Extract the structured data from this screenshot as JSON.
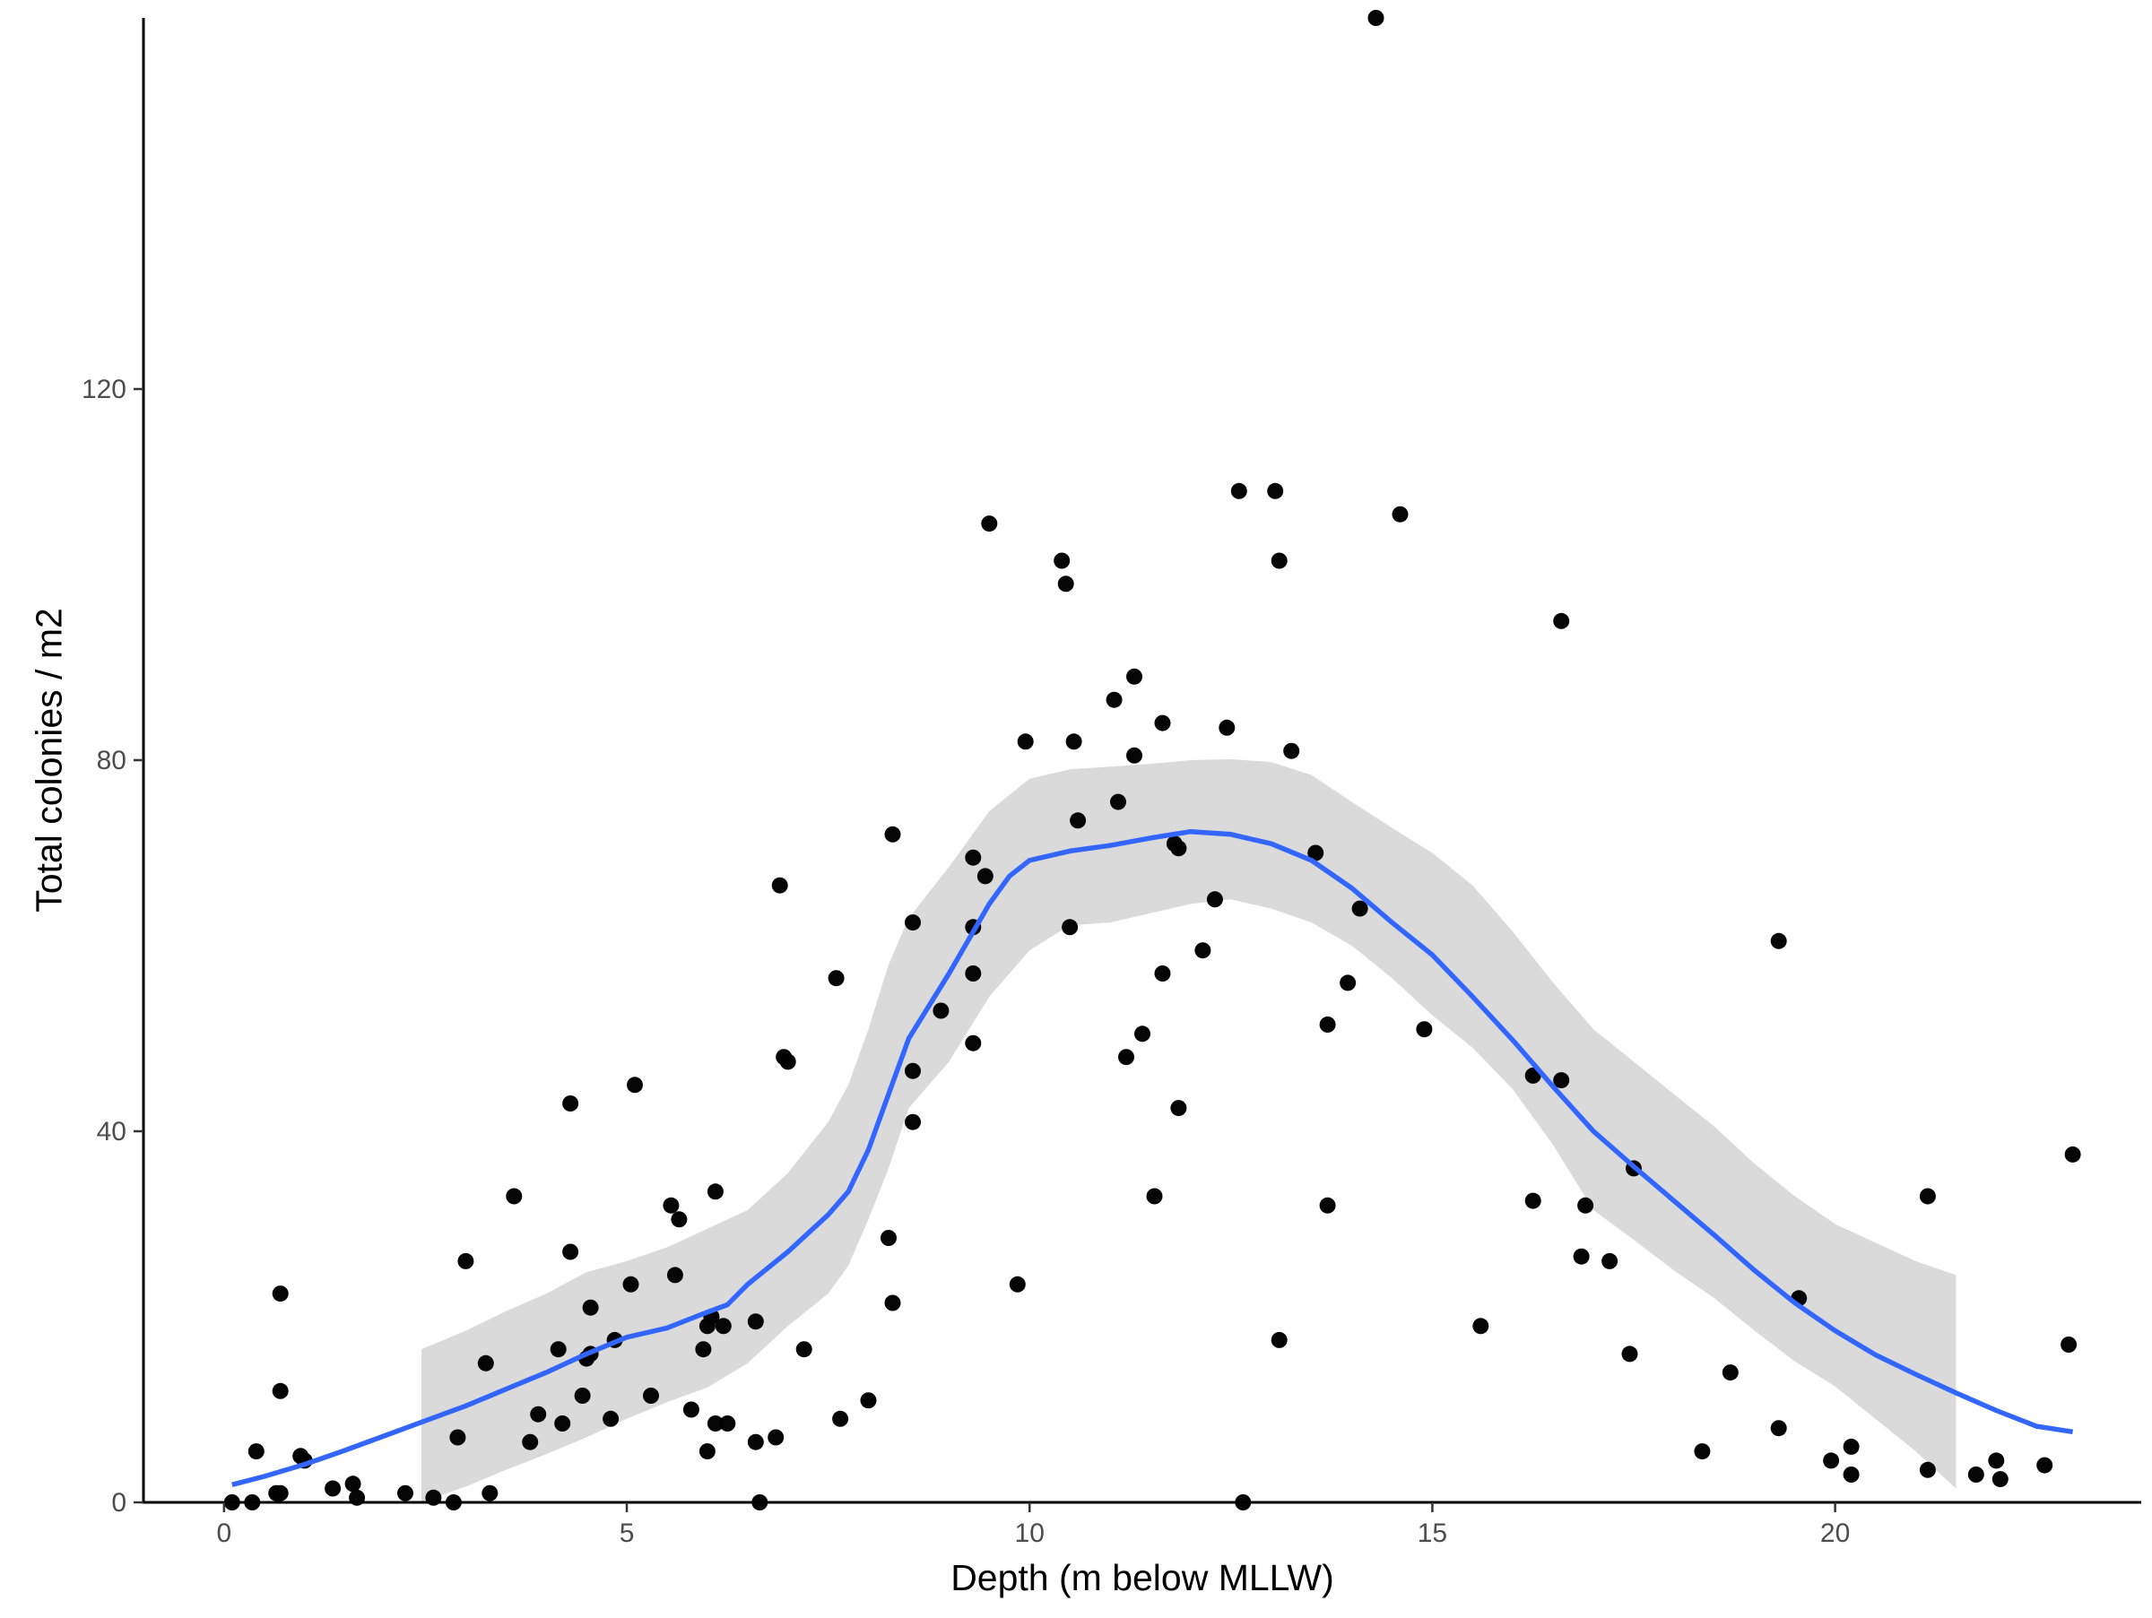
{
  "chart_data": {
    "type": "scatter",
    "title": "",
    "xlabel": "Depth (m below MLLW)",
    "ylabel": "Total colonies / m2",
    "xlim": [
      -1.0,
      23.8
    ],
    "ylim": [
      0,
      160
    ],
    "x_ticks": [
      0,
      5,
      10,
      15,
      20
    ],
    "x_tick_labels": [
      "0",
      "5",
      "10",
      "15",
      "20"
    ],
    "y_ticks": [
      0,
      40,
      80,
      120
    ],
    "y_tick_labels": [
      "0",
      "40",
      "80",
      "120"
    ],
    "grid": false,
    "legend": "none",
    "colors": {
      "points": "#000000",
      "smooth_line": "#3366ff",
      "confidence_band": "#d3d3d3",
      "axis": "#000000",
      "tick_label": "#4d4d4d"
    },
    "points": [
      {
        "x": 0.1,
        "y": 0
      },
      {
        "x": 0.35,
        "y": 0
      },
      {
        "x": 0.65,
        "y": 1
      },
      {
        "x": 0.7,
        "y": 1
      },
      {
        "x": 0.4,
        "y": 5.5
      },
      {
        "x": 0.7,
        "y": 22.5
      },
      {
        "x": 0.7,
        "y": 12
      },
      {
        "x": 0.95,
        "y": 5
      },
      {
        "x": 1.0,
        "y": 4.5
      },
      {
        "x": 1.35,
        "y": 1.5
      },
      {
        "x": 1.6,
        "y": 2
      },
      {
        "x": 1.65,
        "y": 0.5
      },
      {
        "x": 2.25,
        "y": 1
      },
      {
        "x": 2.6,
        "y": 0.5
      },
      {
        "x": 2.85,
        "y": 0
      },
      {
        "x": 2.9,
        "y": 7
      },
      {
        "x": 3.0,
        "y": 26
      },
      {
        "x": 3.25,
        "y": 15
      },
      {
        "x": 3.3,
        "y": 1
      },
      {
        "x": 3.6,
        "y": 33
      },
      {
        "x": 3.8,
        "y": 6.5
      },
      {
        "x": 3.9,
        "y": 9.5
      },
      {
        "x": 4.15,
        "y": 16.5
      },
      {
        "x": 4.2,
        "y": 8.5
      },
      {
        "x": 4.3,
        "y": 43
      },
      {
        "x": 4.3,
        "y": 27
      },
      {
        "x": 4.45,
        "y": 11.5
      },
      {
        "x": 4.5,
        "y": 15.5
      },
      {
        "x": 4.55,
        "y": 16
      },
      {
        "x": 4.55,
        "y": 21
      },
      {
        "x": 4.8,
        "y": 9
      },
      {
        "x": 4.85,
        "y": 17.5
      },
      {
        "x": 5.05,
        "y": 23.5
      },
      {
        "x": 5.1,
        "y": 45
      },
      {
        "x": 5.3,
        "y": 11.5
      },
      {
        "x": 5.55,
        "y": 32
      },
      {
        "x": 5.6,
        "y": 24.5
      },
      {
        "x": 5.65,
        "y": 30.5
      },
      {
        "x": 5.8,
        "y": 10
      },
      {
        "x": 5.95,
        "y": 16.5
      },
      {
        "x": 6.0,
        "y": 19
      },
      {
        "x": 6.0,
        "y": 5.5
      },
      {
        "x": 6.05,
        "y": 20
      },
      {
        "x": 6.1,
        "y": 33.5
      },
      {
        "x": 6.1,
        "y": 8.5
      },
      {
        "x": 6.2,
        "y": 19
      },
      {
        "x": 6.25,
        "y": 8.5
      },
      {
        "x": 6.6,
        "y": 6.5
      },
      {
        "x": 6.6,
        "y": 19.5
      },
      {
        "x": 6.65,
        "y": 0
      },
      {
        "x": 6.85,
        "y": 7
      },
      {
        "x": 6.9,
        "y": 66.5
      },
      {
        "x": 6.95,
        "y": 48
      },
      {
        "x": 7.0,
        "y": 47.5
      },
      {
        "x": 7.2,
        "y": 16.5
      },
      {
        "x": 7.6,
        "y": 56.5
      },
      {
        "x": 7.65,
        "y": 9
      },
      {
        "x": 8.0,
        "y": 11
      },
      {
        "x": 8.25,
        "y": 28.5
      },
      {
        "x": 8.3,
        "y": 72
      },
      {
        "x": 8.3,
        "y": 21.5
      },
      {
        "x": 8.55,
        "y": 62.5
      },
      {
        "x": 8.55,
        "y": 46.5
      },
      {
        "x": 8.55,
        "y": 41
      },
      {
        "x": 8.9,
        "y": 53
      },
      {
        "x": 9.3,
        "y": 69.5
      },
      {
        "x": 9.3,
        "y": 62
      },
      {
        "x": 9.3,
        "y": 57
      },
      {
        "x": 9.3,
        "y": 49.5
      },
      {
        "x": 9.45,
        "y": 67.5
      },
      {
        "x": 9.5,
        "y": 105.5
      },
      {
        "x": 9.85,
        "y": 23.5
      },
      {
        "x": 9.95,
        "y": 82
      },
      {
        "x": 10.4,
        "y": 101.5
      },
      {
        "x": 10.45,
        "y": 99
      },
      {
        "x": 10.5,
        "y": 62
      },
      {
        "x": 10.55,
        "y": 82
      },
      {
        "x": 10.6,
        "y": 73.5
      },
      {
        "x": 11.05,
        "y": 86.5
      },
      {
        "x": 11.1,
        "y": 75.5
      },
      {
        "x": 11.2,
        "y": 48
      },
      {
        "x": 11.3,
        "y": 89
      },
      {
        "x": 11.3,
        "y": 80.5
      },
      {
        "x": 11.4,
        "y": 50.5
      },
      {
        "x": 11.55,
        "y": 33
      },
      {
        "x": 11.65,
        "y": 84
      },
      {
        "x": 11.65,
        "y": 57
      },
      {
        "x": 11.8,
        "y": 71
      },
      {
        "x": 11.85,
        "y": 70.5
      },
      {
        "x": 11.85,
        "y": 42.5
      },
      {
        "x": 12.15,
        "y": 59.5
      },
      {
        "x": 12.3,
        "y": 65
      },
      {
        "x": 12.45,
        "y": 83.5
      },
      {
        "x": 12.6,
        "y": 109
      },
      {
        "x": 12.65,
        "y": 0
      },
      {
        "x": 13.05,
        "y": 109
      },
      {
        "x": 13.1,
        "y": 101.5
      },
      {
        "x": 13.1,
        "y": 17.5
      },
      {
        "x": 13.25,
        "y": 81
      },
      {
        "x": 13.55,
        "y": 70
      },
      {
        "x": 13.7,
        "y": 51.5
      },
      {
        "x": 13.7,
        "y": 32
      },
      {
        "x": 13.95,
        "y": 56
      },
      {
        "x": 14.1,
        "y": 64
      },
      {
        "x": 14.3,
        "y": 160
      },
      {
        "x": 14.6,
        "y": 106.5
      },
      {
        "x": 14.9,
        "y": 51
      },
      {
        "x": 15.6,
        "y": 19
      },
      {
        "x": 16.25,
        "y": 32.5
      },
      {
        "x": 16.25,
        "y": 46
      },
      {
        "x": 16.6,
        "y": 95
      },
      {
        "x": 16.6,
        "y": 45.5
      },
      {
        "x": 16.85,
        "y": 26.5
      },
      {
        "x": 16.9,
        "y": 32
      },
      {
        "x": 17.2,
        "y": 26
      },
      {
        "x": 17.45,
        "y": 16
      },
      {
        "x": 17.5,
        "y": 36
      },
      {
        "x": 18.35,
        "y": 5.5
      },
      {
        "x": 18.7,
        "y": 14
      },
      {
        "x": 19.3,
        "y": 60.5
      },
      {
        "x": 19.3,
        "y": 8
      },
      {
        "x": 19.55,
        "y": 22
      },
      {
        "x": 19.95,
        "y": 4.5
      },
      {
        "x": 20.2,
        "y": 3
      },
      {
        "x": 20.2,
        "y": 6
      },
      {
        "x": 21.15,
        "y": 33
      },
      {
        "x": 21.15,
        "y": 3.5
      },
      {
        "x": 21.75,
        "y": 3
      },
      {
        "x": 22.0,
        "y": 4.5
      },
      {
        "x": 22.05,
        "y": 2.5
      },
      {
        "x": 22.6,
        "y": 4
      },
      {
        "x": 22.9,
        "y": 17
      },
      {
        "x": 22.95,
        "y": 37.5
      }
    ],
    "smooth": {
      "method": "loess",
      "color": "#3366ff",
      "x": [
        0.1,
        0.5,
        1,
        1.5,
        2,
        2.5,
        3,
        3.5,
        4,
        4.5,
        5,
        5.5,
        6,
        6.25,
        6.5,
        7,
        7.5,
        7.75,
        8,
        8.25,
        8.5,
        9,
        9.5,
        9.75,
        10,
        10.5,
        11,
        11.5,
        12,
        12.5,
        13,
        13.5,
        14,
        14.5,
        15,
        15.5,
        16,
        16.5,
        17,
        17.5,
        18,
        18.5,
        19,
        19.5,
        20,
        20.5,
        21,
        21.5,
        22,
        22.5,
        22.95
      ],
      "y": [
        1.9,
        2.8,
        4.1,
        5.6,
        7.2,
        8.8,
        10.4,
        12.2,
        14,
        16,
        17.8,
        18.8,
        20.5,
        21.3,
        23.5,
        27,
        31,
        33.5,
        38,
        44,
        50,
        57,
        64.5,
        67.5,
        69.2,
        70.2,
        70.8,
        71.6,
        72.3,
        72,
        71,
        69.2,
        66.2,
        62.5,
        59,
        54.5,
        49.8,
        44.8,
        40,
        36.2,
        32.5,
        28.8,
        25,
        21.5,
        18.5,
        15.9,
        13.8,
        11.8,
        9.9,
        8.2,
        7.6
      ]
    },
    "confidence_band": {
      "x": [
        2.45,
        3,
        3.5,
        4,
        4.5,
        5,
        5.5,
        6,
        6.5,
        7,
        7.5,
        7.75,
        8,
        8.25,
        8.5,
        9,
        9.5,
        10,
        10.5,
        11,
        11.5,
        12,
        12.5,
        13,
        13.5,
        14,
        14.5,
        15,
        15.5,
        16,
        16.5,
        17,
        17.5,
        18,
        18.5,
        19,
        19.5,
        20,
        20.5,
        21,
        21.5
      ],
      "upper": [
        16.5,
        18.5,
        20.6,
        22.5,
        24.8,
        26,
        27.5,
        29.5,
        31.5,
        35.5,
        41,
        45,
        51,
        58,
        63,
        68.5,
        74.5,
        78,
        79,
        79.3,
        79.6,
        80,
        80.1,
        79.8,
        78.4,
        75.5,
        72.7,
        70,
        66.5,
        61.5,
        56,
        51,
        47.5,
        44,
        40.5,
        36.5,
        33,
        30,
        28,
        26,
        24.5
      ],
      "lower": [
        0,
        1.7,
        3.5,
        5.2,
        7,
        9,
        10.8,
        12.4,
        15,
        19,
        22.5,
        25.5,
        30.5,
        36,
        42.5,
        47.5,
        54.5,
        59.5,
        62.2,
        62.5,
        63.5,
        64.5,
        65,
        64,
        62.5,
        60,
        56.5,
        52.5,
        49,
        44.5,
        38.5,
        31.5,
        28.3,
        25,
        22,
        18.5,
        15.2,
        12.5,
        9,
        5.5,
        1.5
      ]
    }
  }
}
